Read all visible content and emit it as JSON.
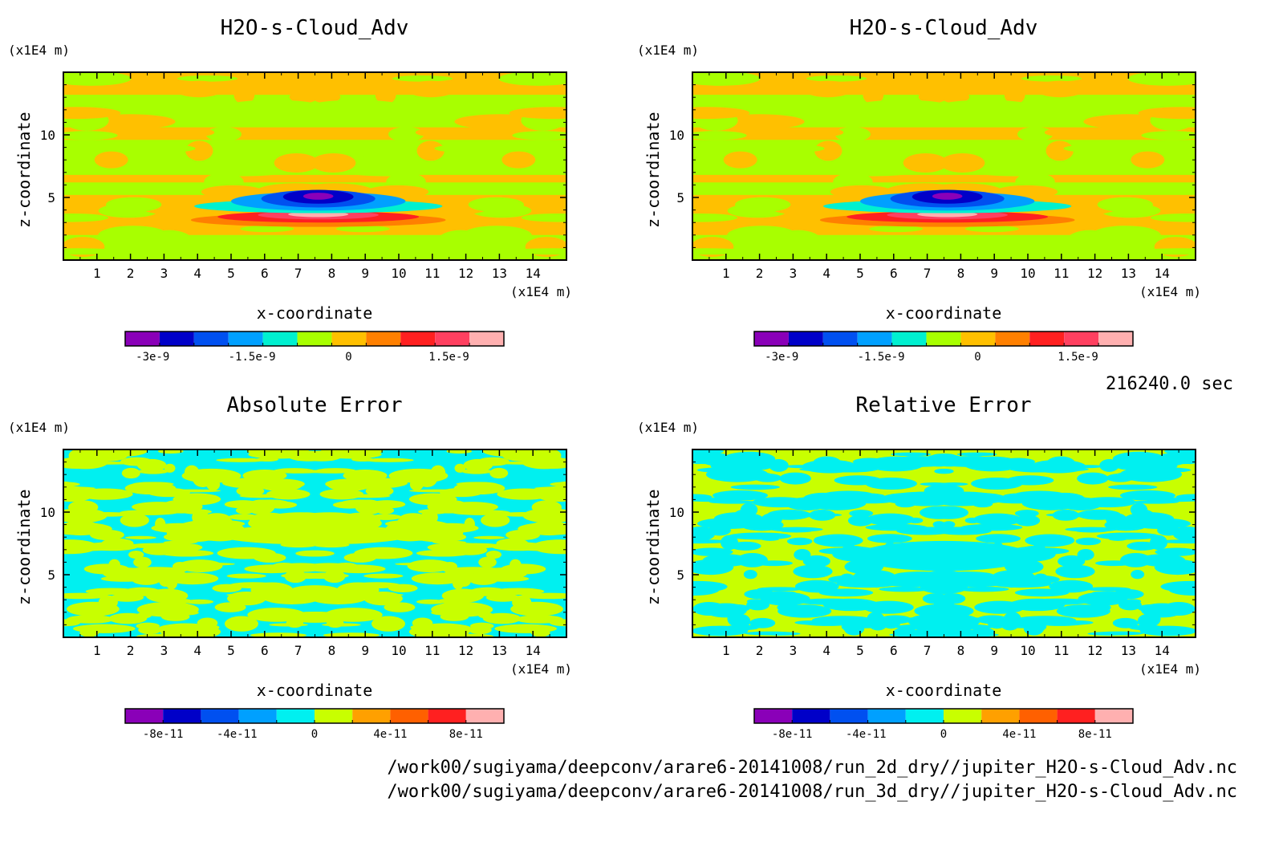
{
  "panels": [
    {
      "title": "H2O-s-Cloud_Adv",
      "yunit": "(x1E4 m)",
      "xunit": "(x1E4 m)",
      "xlabel": "x-coordinate",
      "ylabel": "z-coordinate",
      "colorbar": {
        "colors": [
          "#8a00b8",
          "#0000c8",
          "#0050f0",
          "#00a0ff",
          "#00f0d0",
          "#a8ff00",
          "#ffc000",
          "#ff8000",
          "#ff2020",
          "#ff4060",
          "#ffb0b0"
        ],
        "ticks": [
          "-3e-9",
          "-1.5e-9",
          "0",
          "1.5e-9"
        ]
      }
    },
    {
      "title": "H2O-s-Cloud_Adv",
      "yunit": "(x1E4 m)",
      "xunit": "(x1E4 m)",
      "xlabel": "x-coordinate",
      "ylabel": "z-coordinate",
      "colorbar": {
        "colors": [
          "#8a00b8",
          "#0000c8",
          "#0050f0",
          "#00a0ff",
          "#00f0d0",
          "#a8ff00",
          "#ffc000",
          "#ff8000",
          "#ff2020",
          "#ff4060",
          "#ffb0b0"
        ],
        "ticks": [
          "-3e-9",
          "-1.5e-9",
          "0",
          "1.5e-9"
        ]
      }
    },
    {
      "title": "Absolute Error",
      "yunit": "(x1E4 m)",
      "xunit": "(x1E4 m)",
      "xlabel": "x-coordinate",
      "ylabel": "z-coordinate",
      "colorbar": {
        "colors": [
          "#8a00b8",
          "#0000c8",
          "#0050f0",
          "#00a0ff",
          "#00f0f0",
          "#c8ff00",
          "#ffa000",
          "#ff6000",
          "#ff2020",
          "#ffb0b0"
        ],
        "ticks": [
          "-8e-11",
          "-4e-11",
          "0",
          "4e-11",
          "8e-11"
        ]
      }
    },
    {
      "title": "Relative Error",
      "yunit": "(x1E4 m)",
      "xunit": "(x1E4 m)",
      "xlabel": "x-coordinate",
      "ylabel": "z-coordinate",
      "colorbar": {
        "colors": [
          "#8a00b8",
          "#0000c8",
          "#0050f0",
          "#00a0ff",
          "#00f0f0",
          "#c8ff00",
          "#ffa000",
          "#ff6000",
          "#ff2020",
          "#ffb0b0"
        ],
        "ticks": [
          "-8e-11",
          "-4e-11",
          "0",
          "4e-11",
          "8e-11"
        ]
      }
    }
  ],
  "timestamp": "216240.0 sec",
  "footer": {
    "line1": "/work00/sugiyama/deepconv/arare6-20141008/run_2d_dry//jupiter_H2O-s-Cloud_Adv.nc",
    "line2": "/work00/sugiyama/deepconv/arare6-20141008/run_3d_dry//jupiter_H2O-s-Cloud_Adv.nc"
  },
  "chart_data": [
    {
      "type": "heatmap",
      "title": "H2O-s-Cloud_Adv",
      "xlabel": "x-coordinate",
      "ylabel": "z-coordinate",
      "xunit": "(x1E4 m)",
      "yunit": "(x1E4 m)",
      "xlim": [
        0,
        15
      ],
      "ylim": [
        0,
        15
      ],
      "xticks": [
        "1",
        "2",
        "3",
        "4",
        "5",
        "6",
        "7",
        "8",
        "9",
        "10",
        "11",
        "12",
        "13",
        "14"
      ],
      "yticks": [
        "5",
        "10"
      ],
      "features": [
        {
          "kind": "negative-core",
          "x": 7.6,
          "z": 5.1,
          "min": -3.3e-09
        },
        {
          "kind": "positive-core",
          "x": 7.6,
          "z": 3.5,
          "max": 1.9e-09
        }
      ],
      "colorbar_ticks": [
        -3e-09,
        -1.5e-09,
        0,
        1.5e-09
      ]
    },
    {
      "type": "heatmap",
      "title": "H2O-s-Cloud_Adv",
      "xlabel": "x-coordinate",
      "ylabel": "z-coordinate",
      "xunit": "(x1E4 m)",
      "yunit": "(x1E4 m)",
      "xlim": [
        0,
        15
      ],
      "ylim": [
        0,
        15
      ],
      "xticks": [
        "1",
        "2",
        "3",
        "4",
        "5",
        "6",
        "7",
        "8",
        "9",
        "10",
        "11",
        "12",
        "13",
        "14"
      ],
      "yticks": [
        "5",
        "10"
      ],
      "features": [
        {
          "kind": "negative-core",
          "x": 7.6,
          "z": 5.1,
          "min": -3.3e-09
        },
        {
          "kind": "positive-core",
          "x": 7.6,
          "z": 3.5,
          "max": 1.9e-09
        }
      ],
      "colorbar_ticks": [
        -3e-09,
        -1.5e-09,
        0,
        1.5e-09
      ]
    },
    {
      "type": "heatmap",
      "title": "Absolute Error",
      "xlabel": "x-coordinate",
      "ylabel": "z-coordinate",
      "xunit": "(x1E4 m)",
      "yunit": "(x1E4 m)",
      "xlim": [
        0,
        15
      ],
      "ylim": [
        0,
        15
      ],
      "xticks": [
        "1",
        "2",
        "3",
        "4",
        "5",
        "6",
        "7",
        "8",
        "9",
        "10",
        "11",
        "12",
        "13",
        "14"
      ],
      "yticks": [
        "5",
        "10"
      ],
      "colorbar_ticks": [
        -8e-11,
        -4e-11,
        0,
        4e-11,
        8e-11
      ]
    },
    {
      "type": "heatmap",
      "title": "Relative Error",
      "xlabel": "x-coordinate",
      "ylabel": "z-coordinate",
      "xunit": "(x1E4 m)",
      "yunit": "(x1E4 m)",
      "xlim": [
        0,
        15
      ],
      "ylim": [
        0,
        15
      ],
      "xticks": [
        "1",
        "2",
        "3",
        "4",
        "5",
        "6",
        "7",
        "8",
        "9",
        "10",
        "11",
        "12",
        "13",
        "14"
      ],
      "yticks": [
        "5",
        "10"
      ],
      "colorbar_ticks": [
        -8e-11,
        -4e-11,
        0,
        4e-11,
        8e-11
      ]
    }
  ]
}
